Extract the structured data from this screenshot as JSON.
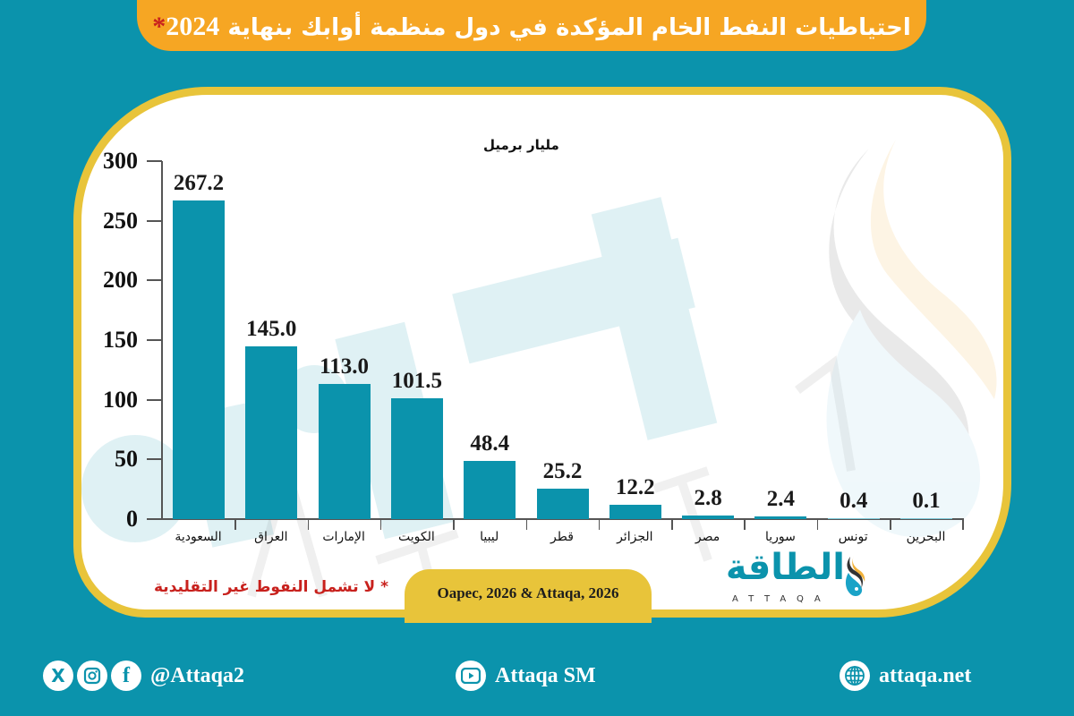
{
  "header": {
    "title": "احتياطيات النفط الخام المؤكدة في دول منظمة أوابك بنهاية",
    "year": "2024",
    "asterisk": "*"
  },
  "chart": {
    "unit_label": "مليار برميل",
    "note": "* لا تشمل النفوط غير التقليدية",
    "source": "Oapec, 2026 & Attaqa, 2026"
  },
  "chart_data": {
    "type": "bar",
    "title": "احتياطيات النفط الخام المؤكدة في دول منظمة أوابك بنهاية 2024*",
    "ylabel": "مليار برميل",
    "xlabel": "",
    "categories": [
      "السعودية",
      "العراق",
      "الإمارات",
      "الكويت",
      "ليبيا",
      "قطر",
      "الجزائر",
      "مصر",
      "سوريا",
      "تونس",
      "البحرين"
    ],
    "values": [
      267.2,
      145.0,
      113.0,
      101.5,
      48.4,
      25.2,
      12.2,
      2.8,
      2.4,
      0.4,
      0.1
    ],
    "value_labels": [
      "267.2",
      "145.0",
      "113.0",
      "101.5",
      "48.4",
      "25.2",
      "12.2",
      "2.8",
      "2.4",
      "0.4",
      "0.1"
    ],
    "yticks": [
      0,
      50,
      100,
      150,
      200,
      250,
      300
    ],
    "ylim": [
      0,
      300
    ],
    "grid": false,
    "legend": null,
    "bar_color": "#0b93ac",
    "annotations": [
      "* لا تشمل النفوط غير التقليدية"
    ],
    "source": "Oapec, 2026 & Attaqa, 2026"
  },
  "logo": {
    "arabic": "الطاقة",
    "english": "ATTAQA"
  },
  "footer": {
    "social_handle": "@Attaqa2",
    "youtube": "Attaqa SM",
    "website": "attaqa.net",
    "icons": {
      "x": "X",
      "instagram": "instagram-icon",
      "facebook": "f",
      "youtube": "youtube-icon",
      "globe": "globe-icon"
    }
  },
  "colors": {
    "background": "#0b93ac",
    "banner": "#f6a623",
    "frame": "#e8c43a",
    "bar": "#0b93ac",
    "note": "#c8211d"
  }
}
